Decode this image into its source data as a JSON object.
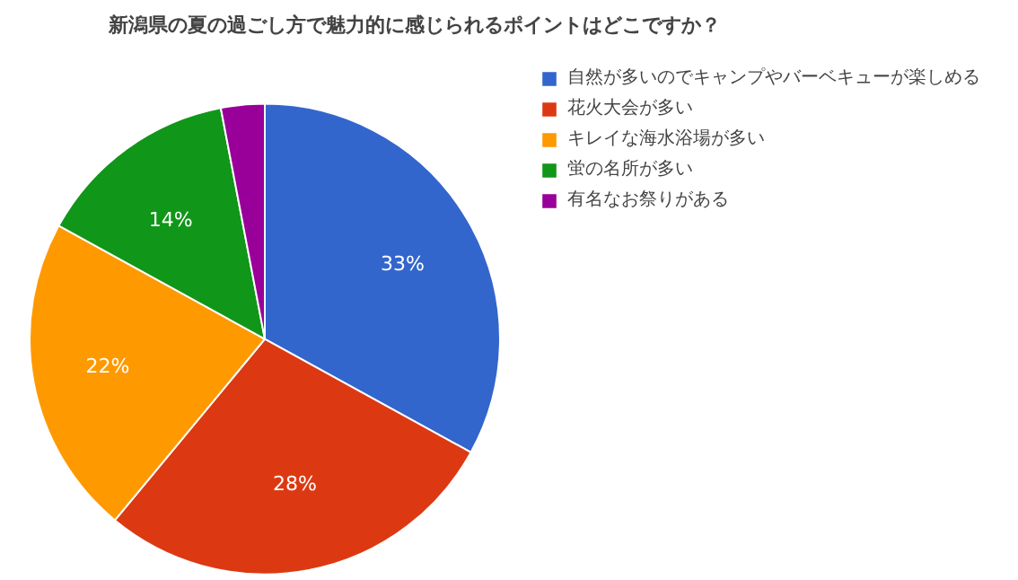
{
  "chart_data": {
    "type": "pie",
    "title": "新潟県の夏の過ごし方で魅力的に感じられるポイントはどこですか？",
    "categories": [
      "自然が多いのでキャンプやバーベキューが楽しめる",
      "花火大会が多い",
      "キレイな海水浴場が多い",
      "蛍の名所が多い",
      "有名なお祭りがある"
    ],
    "values": [
      33,
      28,
      22,
      14,
      3
    ],
    "colors": [
      "#3366cc",
      "#dc3912",
      "#ff9900",
      "#109618",
      "#990099"
    ],
    "value_labels": [
      "33%",
      "28%",
      "22%",
      "14%",
      null
    ],
    "legend": "top right"
  }
}
